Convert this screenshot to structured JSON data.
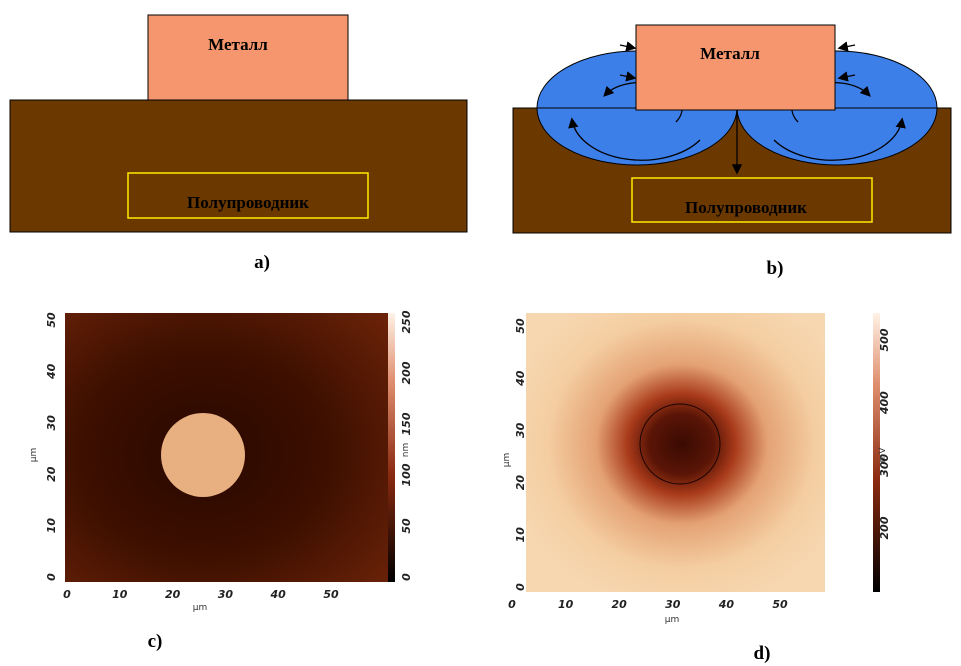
{
  "panel_a": {
    "metal": "Металл",
    "semiconductor": "Полупроводник",
    "label": "a)"
  },
  "panel_b": {
    "metal": "Металл",
    "semiconductor": "Полупроводник",
    "label": "b)"
  },
  "panel_c": {
    "x_ticks": [
      0,
      10,
      20,
      30,
      40,
      50
    ],
    "y_ticks": [
      0,
      10,
      20,
      30,
      40,
      50
    ],
    "x_axis_label": "µm",
    "y_axis_label": "µm",
    "colorbar_ticks": [
      0,
      50,
      100,
      150,
      200,
      250
    ],
    "colorbar_unit": "nm",
    "label": "c)"
  },
  "panel_d": {
    "x_ticks": [
      0,
      10,
      20,
      30,
      40,
      50
    ],
    "y_ticks": [
      0,
      10,
      20,
      30,
      40,
      50
    ],
    "x_axis_label": "µm",
    "y_axis_label": "µm",
    "colorbar_ticks": [
      200,
      300,
      400,
      500
    ],
    "colorbar_unit": "mV",
    "label": "d)"
  }
}
